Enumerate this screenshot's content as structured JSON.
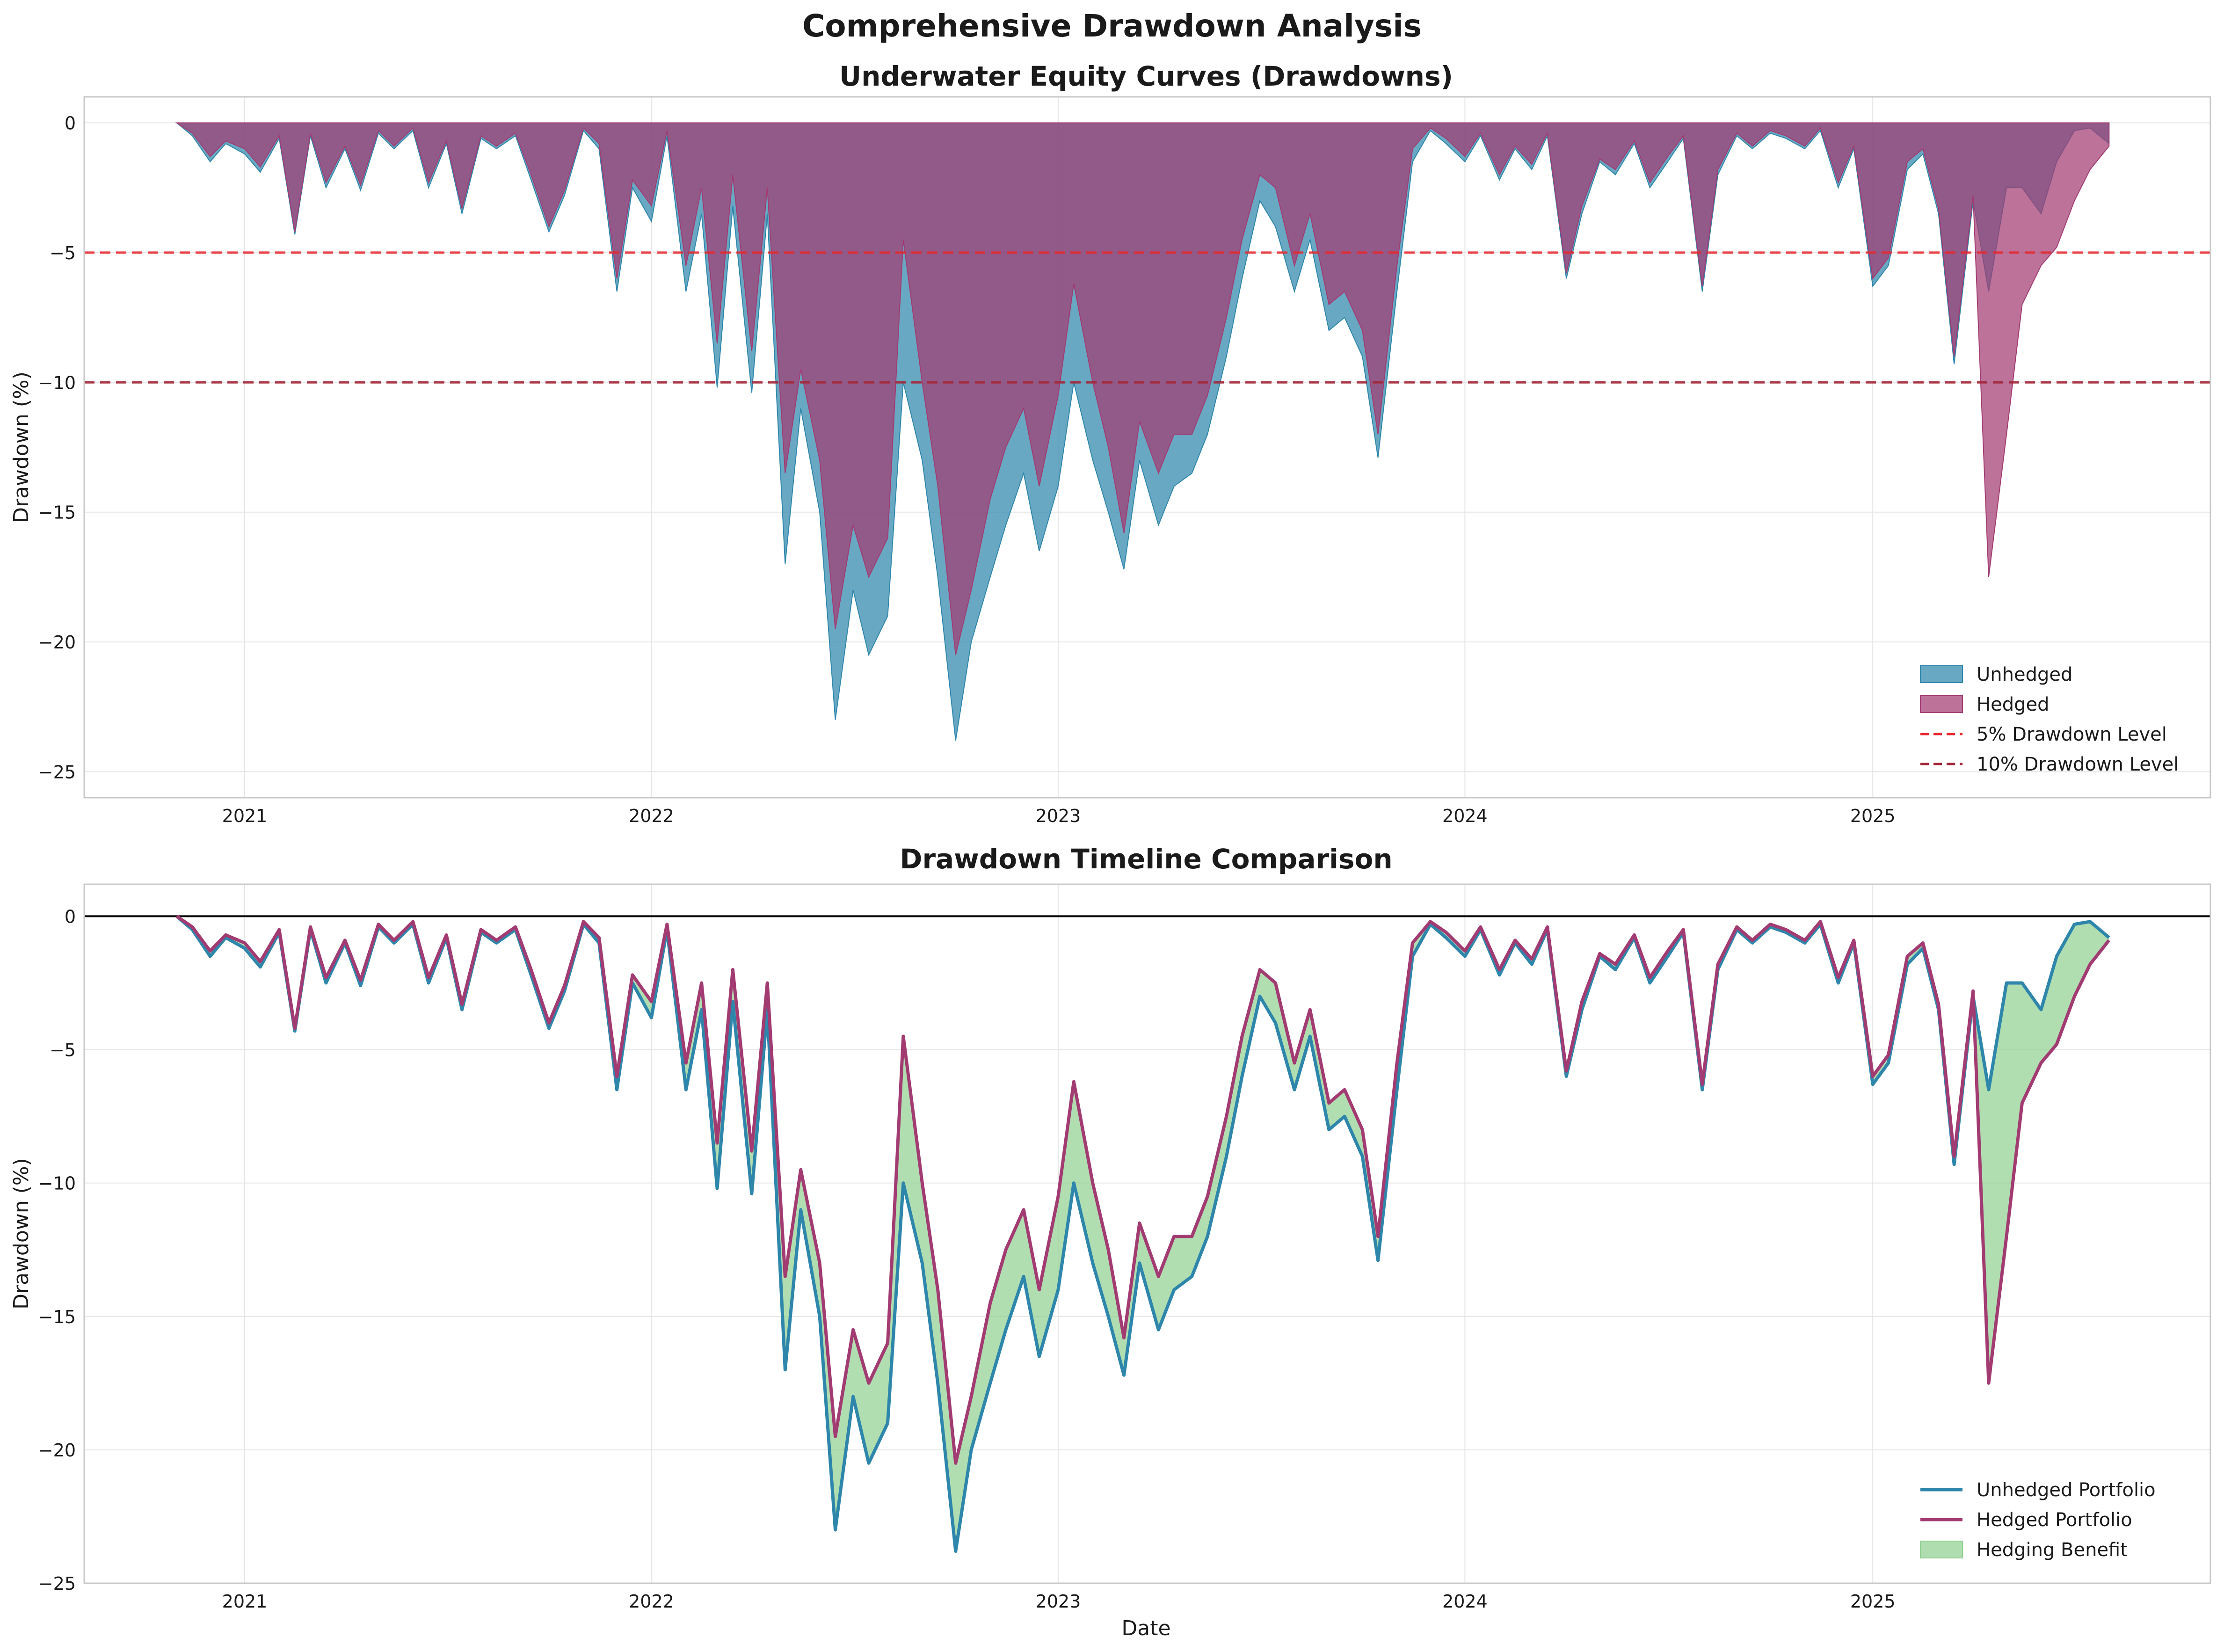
{
  "figure_title": "Comprehensive Drawdown Analysis",
  "colors": {
    "unhedged": "#2E86AB",
    "hedged": "#A23B72",
    "benefit": "#90D090",
    "level5": "#E8282E",
    "level10": "#A3283A",
    "zero_line": "#000000",
    "grid": "#E5E5E5",
    "axes": "#C8C8C8"
  },
  "chart_data": [
    {
      "type": "area",
      "title": "Underwater Equity Curves (Drawdowns)",
      "xlabel": "",
      "ylabel": "Drawdown (%)",
      "x_ticks": [
        "2021",
        "2022",
        "2023",
        "2024",
        "2025"
      ],
      "y_ticks": [
        0,
        -5,
        -10,
        -15,
        -20,
        -25
      ],
      "xlim": [
        "2020-08-10",
        "2025-10-31"
      ],
      "ylim": [
        -26,
        1
      ],
      "grid": true,
      "legend_position": "lower-right",
      "legend": [
        "Unhedged",
        "Hedged",
        "5% Drawdown Level",
        "10% Drawdown Level"
      ],
      "reference_lines": [
        {
          "name": "5% Drawdown Level",
          "y": -5,
          "style": "dashed"
        },
        {
          "name": "10% Drawdown Level",
          "y": -10,
          "style": "dashed"
        }
      ],
      "series": [
        {
          "name": "Unhedged",
          "values_ref": "drawdown_data.unhedged"
        },
        {
          "name": "Hedged",
          "values_ref": "drawdown_data.hedged"
        }
      ]
    },
    {
      "type": "line",
      "title": "Drawdown Timeline Comparison",
      "xlabel": "Date",
      "ylabel": "Drawdown (%)",
      "x_ticks": [
        "2021",
        "2022",
        "2023",
        "2024",
        "2025"
      ],
      "y_ticks": [
        0,
        -5,
        -10,
        -15,
        -20,
        -25
      ],
      "xlim": [
        "2020-08-10",
        "2025-10-31"
      ],
      "ylim": [
        -25,
        1.2
      ],
      "grid": true,
      "legend_position": "lower-right",
      "legend": [
        "Unhedged Portfolio",
        "Hedged Portfolio",
        "Hedging Benefit"
      ],
      "reference_lines": [
        {
          "name": "zero",
          "y": 0,
          "style": "solid"
        }
      ],
      "series": [
        {
          "name": "Unhedged Portfolio",
          "values_ref": "drawdown_data.unhedged"
        },
        {
          "name": "Hedged Portfolio",
          "values_ref": "drawdown_data.hedged"
        },
        {
          "name": "Hedging Benefit",
          "fill_between": [
            "drawdown_data.unhedged",
            "drawdown_data.hedged"
          ]
        }
      ]
    }
  ],
  "drawdown_data": {
    "dates": [
      "2020-11-01",
      "2020-11-15",
      "2020-12-01",
      "2020-12-15",
      "2021-01-01",
      "2021-01-15",
      "2021-02-01",
      "2021-02-15",
      "2021-03-01",
      "2021-03-15",
      "2021-04-01",
      "2021-04-15",
      "2021-05-01",
      "2021-05-15",
      "2021-06-01",
      "2021-06-15",
      "2021-07-01",
      "2021-07-15",
      "2021-08-01",
      "2021-08-15",
      "2021-09-01",
      "2021-09-15",
      "2021-10-01",
      "2021-10-15",
      "2021-11-01",
      "2021-11-15",
      "2021-12-01",
      "2021-12-15",
      "2022-01-01",
      "2022-01-15",
      "2022-02-01",
      "2022-02-15",
      "2022-03-01",
      "2022-03-15",
      "2022-04-01",
      "2022-04-15",
      "2022-05-01",
      "2022-05-15",
      "2022-06-01",
      "2022-06-15",
      "2022-07-01",
      "2022-07-15",
      "2022-08-01",
      "2022-08-15",
      "2022-09-01",
      "2022-09-15",
      "2022-10-01",
      "2022-10-15",
      "2022-11-01",
      "2022-11-15",
      "2022-12-01",
      "2022-12-15",
      "2023-01-01",
      "2023-01-15",
      "2023-02-01",
      "2023-02-15",
      "2023-03-01",
      "2023-03-15",
      "2023-04-01",
      "2023-04-15",
      "2023-05-01",
      "2023-05-15",
      "2023-06-01",
      "2023-06-15",
      "2023-07-01",
      "2023-07-15",
      "2023-08-01",
      "2023-08-15",
      "2023-09-01",
      "2023-09-15",
      "2023-10-01",
      "2023-10-15",
      "2023-11-01",
      "2023-11-15",
      "2023-12-01",
      "2023-12-15",
      "2024-01-01",
      "2024-01-15",
      "2024-02-01",
      "2024-02-15",
      "2024-03-01",
      "2024-03-15",
      "2024-04-01",
      "2024-04-15",
      "2024-05-01",
      "2024-05-15",
      "2024-06-01",
      "2024-06-15",
      "2024-07-01",
      "2024-07-15",
      "2024-08-01",
      "2024-08-15",
      "2024-09-01",
      "2024-09-15",
      "2024-10-01",
      "2024-10-15",
      "2024-11-01",
      "2024-11-15",
      "2024-12-01",
      "2024-12-15",
      "2025-01-01",
      "2025-01-15",
      "2025-02-01",
      "2025-02-15",
      "2025-03-01",
      "2025-03-15",
      "2025-04-01",
      "2025-04-15",
      "2025-05-01",
      "2025-05-15",
      "2025-06-01",
      "2025-06-15",
      "2025-07-01",
      "2025-07-15",
      "2025-08-01"
    ],
    "unhedged": [
      0,
      -0.5,
      -1.5,
      -0.8,
      -1.2,
      -1.9,
      -0.6,
      -4.3,
      -0.5,
      -2.5,
      -1.0,
      -2.6,
      -0.4,
      -1.0,
      -0.3,
      -2.5,
      -0.8,
      -3.5,
      -0.6,
      -1.0,
      -0.5,
      -2.2,
      -4.2,
      -2.8,
      -0.3,
      -1.0,
      -6.5,
      -2.5,
      -3.8,
      -0.5,
      -6.5,
      -3.5,
      -10.2,
      -3.2,
      -10.4,
      -3.5,
      -17.0,
      -11.0,
      -15.0,
      -23.0,
      -18.0,
      -20.5,
      -19.0,
      -10.0,
      -13.0,
      -17.5,
      -23.8,
      -20.0,
      -17.5,
      -15.5,
      -13.5,
      -16.5,
      -14.0,
      -10.0,
      -13.0,
      -15.0,
      -17.2,
      -13.0,
      -15.5,
      -14.0,
      -13.5,
      -12.0,
      -9.0,
      -6.0,
      -3.0,
      -4.0,
      -6.5,
      -4.5,
      -8.0,
      -7.5,
      -9.0,
      -12.9,
      -6.5,
      -1.5,
      -0.3,
      -0.8,
      -1.5,
      -0.5,
      -2.2,
      -1.0,
      -1.8,
      -0.5,
      -6.0,
      -3.5,
      -1.5,
      -2.0,
      -0.8,
      -2.5,
      -1.5,
      -0.6,
      -6.5,
      -2.0,
      -0.5,
      -1.0,
      -0.4,
      -0.6,
      -1.0,
      -0.3,
      -2.5,
      -1.0,
      -6.3,
      -5.5,
      -1.8,
      -1.2,
      -3.5,
      -9.3,
      -3.0,
      -6.5,
      -2.5,
      -2.5,
      -3.5,
      -1.5,
      -0.3,
      -0.2,
      -0.8
    ],
    "hedged": [
      0,
      -0.4,
      -1.3,
      -0.7,
      -1.0,
      -1.7,
      -0.5,
      -4.2,
      -0.4,
      -2.3,
      -0.9,
      -2.4,
      -0.3,
      -0.9,
      -0.2,
      -2.3,
      -0.7,
      -3.3,
      -0.5,
      -0.9,
      -0.4,
      -2.0,
      -4.0,
      -2.6,
      -0.2,
      -0.8,
      -6.0,
      -2.2,
      -3.2,
      -0.3,
      -5.5,
      -2.5,
      -8.5,
      -2.0,
      -8.8,
      -2.5,
      -13.5,
      -9.5,
      -13.0,
      -19.5,
      -15.5,
      -17.5,
      -16.0,
      -4.5,
      -10.0,
      -14.0,
      -20.5,
      -18.0,
      -14.5,
      -12.5,
      -11.0,
      -14.0,
      -10.5,
      -6.2,
      -10.0,
      -12.5,
      -15.8,
      -11.5,
      -13.5,
      -12.0,
      -12.0,
      -10.5,
      -7.5,
      -4.5,
      -2.0,
      -2.5,
      -5.5,
      -3.5,
      -7.0,
      -6.5,
      -8.0,
      -12.0,
      -5.5,
      -1.0,
      -0.2,
      -0.6,
      -1.3,
      -0.4,
      -2.0,
      -0.9,
      -1.6,
      -0.4,
      -5.8,
      -3.2,
      -1.4,
      -1.8,
      -0.7,
      -2.3,
      -1.3,
      -0.5,
      -6.3,
      -1.8,
      -0.4,
      -0.9,
      -0.3,
      -0.5,
      -0.9,
      -0.2,
      -2.3,
      -0.9,
      -6.0,
      -5.2,
      -1.5,
      -1.0,
      -3.3,
      -9.0,
      -2.8,
      -17.5,
      -12.0,
      -7.0,
      -5.5,
      -4.8,
      -3.0,
      -1.8,
      -0.9
    ]
  }
}
